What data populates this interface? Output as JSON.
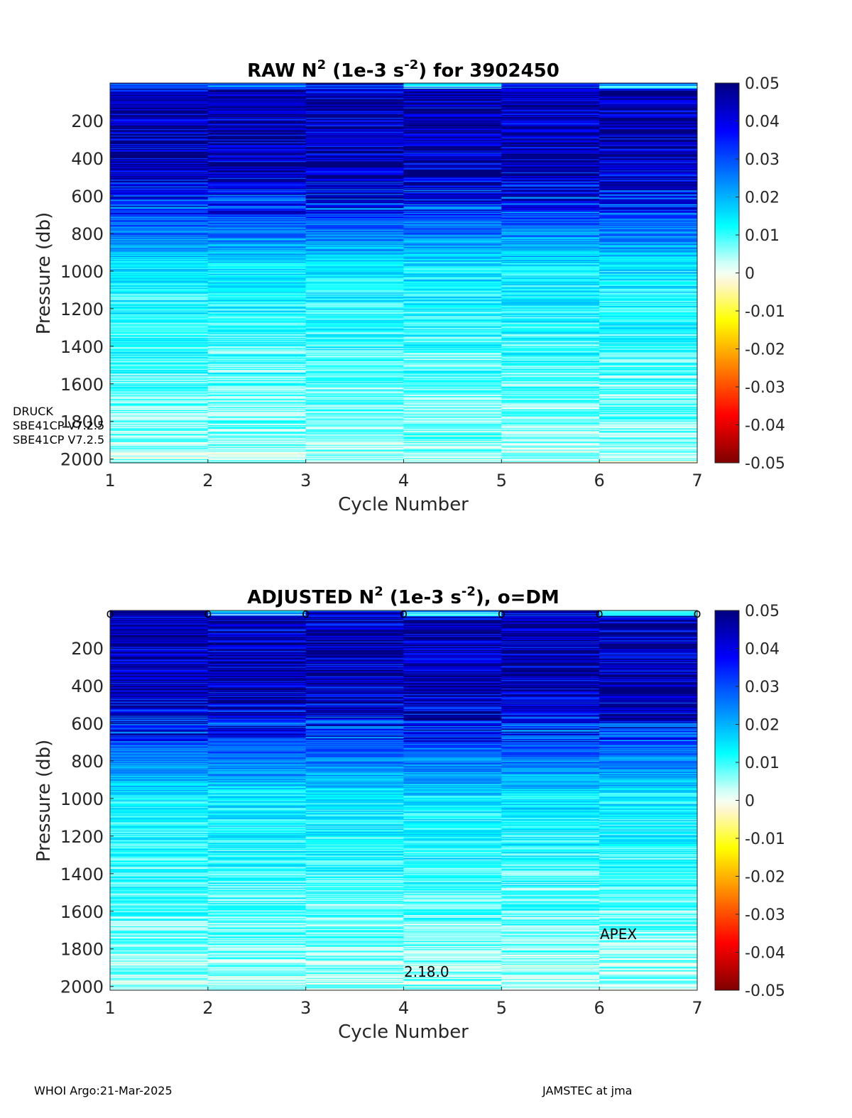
{
  "chart_data": [
    {
      "type": "heatmap",
      "title": "RAW N² (1e-3 s⁻²) for 3902450",
      "title_parts": {
        "pre": "RAW N",
        "sup1": "2",
        "mid": " (1e-3 s",
        "sup2": "-2",
        "post": ") for 3902450"
      },
      "xlabel": "Cycle Number",
      "ylabel": "Pressure (db)",
      "x_ticks": [
        "1",
        "2",
        "3",
        "4",
        "5",
        "6",
        "7"
      ],
      "y_ticks": [
        "200",
        "400",
        "600",
        "800",
        "1000",
        "1200",
        "1400",
        "1600",
        "1800",
        "2000"
      ],
      "xlim": [
        1,
        7
      ],
      "ylim": [
        0,
        2020
      ],
      "y_reversed": true,
      "cycles": [
        1,
        2,
        3,
        4,
        5,
        6
      ],
      "colorbar": {
        "min": -0.05,
        "max": 0.05,
        "colormap": "jet",
        "ticks": [
          "0.05",
          "0.04",
          "0.03",
          "0.02",
          "0.01",
          "0",
          "-0.01",
          "-0.02",
          "-0.03",
          "-0.04",
          "-0.05"
        ]
      },
      "annotations": [
        "DRUCK",
        "SBE41CP V7.2.5",
        "SBE41CP V7.2.5"
      ],
      "dm_markers": []
    },
    {
      "type": "heatmap",
      "title": "ADJUSTED N² (1e-3 s⁻²), o=DM",
      "title_parts": {
        "pre": "ADJUSTED N",
        "sup1": "2",
        "mid": " (1e-3 s",
        "sup2": "-2",
        "post": "), o=DM"
      },
      "xlabel": "Cycle Number",
      "ylabel": "Pressure (db)",
      "x_ticks": [
        "1",
        "2",
        "3",
        "4",
        "5",
        "6",
        "7"
      ],
      "y_ticks": [
        "200",
        "400",
        "600",
        "800",
        "1000",
        "1200",
        "1400",
        "1600",
        "1800",
        "2000"
      ],
      "xlim": [
        1,
        7
      ],
      "ylim": [
        0,
        2020
      ],
      "y_reversed": true,
      "cycles": [
        1,
        2,
        3,
        4,
        5,
        6
      ],
      "colorbar": {
        "min": -0.05,
        "max": 0.05,
        "colormap": "jet",
        "ticks": [
          "0.05",
          "0.04",
          "0.03",
          "0.02",
          "0.01",
          "0",
          "-0.01",
          "-0.02",
          "-0.03",
          "-0.04",
          "-0.05"
        ]
      },
      "annotations": [
        "2.18.0",
        "APEX"
      ],
      "dm_markers": [
        "o",
        "o",
        "o",
        "o",
        "o",
        "o",
        "o"
      ]
    }
  ],
  "footer": {
    "left": "WHOI Argo:21-Mar-2025",
    "right": "JAMSTEC at jma"
  }
}
